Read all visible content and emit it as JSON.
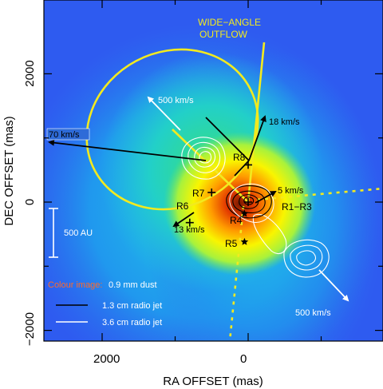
{
  "chart_data": {
    "type": "scatter",
    "description_note": "",
    "xlabel": "RA OFFSET (mas)",
    "ylabel": "DEC OFFSET (mas)",
    "xlim": [
      3000,
      -2000
    ],
    "ylim": [
      -2000,
      2700
    ],
    "x_ticks": [
      "2000",
      "0"
    ],
    "y_ticks": [
      "2000",
      "0",
      "−2000"
    ],
    "sources": [
      {
        "name": "R1−R3",
        "x": 0,
        "y": 0
      },
      {
        "name": "R4",
        "x": 50,
        "y": -180
      },
      {
        "name": "R5",
        "x": 50,
        "y": -620
      },
      {
        "name": "R6",
        "x": 800,
        "y": -320
      },
      {
        "name": "R7",
        "x": 500,
        "y": 150
      },
      {
        "name": "R8",
        "x": 0,
        "y": 580
      }
    ],
    "velocity_labels": {
      "v18": "18 km/s",
      "v5": "5 km/s",
      "v13": "13 km/s",
      "v70": "70 km/s",
      "v500a": "500 km/s",
      "v500b": "500 km/s"
    },
    "outflow_label": [
      "WIDE−ANGLE",
      "OUTFLOW"
    ],
    "scale_bar_label": "500 AU",
    "legend": {
      "colour_prefix": "Colour image:",
      "colour_text": "0.9 mm dust",
      "black_line": "1.3 cm radio jet",
      "white_line": "3.6 cm radio jet"
    },
    "colors": {
      "outflow": "#f2ea1f",
      "dust_background": "#2e5bf0",
      "colour_image_label": "#ff6a2a"
    }
  }
}
